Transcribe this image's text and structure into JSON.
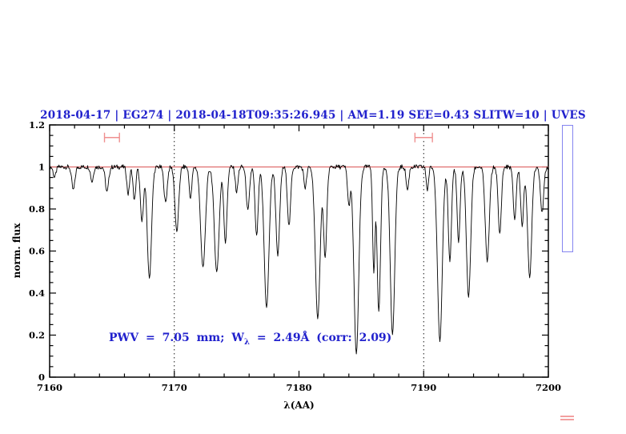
{
  "page": {
    "background": "#ffffff"
  },
  "chart_data": {
    "type": "line",
    "title": "2018-04-17 | EG274 | 2018-04-18T09:35:26.945 | AM=1.19 SEE=0.43 SLITW=10 | UVES",
    "title_color": "#2121cd",
    "xlabel": "λ(AA)",
    "ylabel": "norm. flux",
    "xlim": [
      7160,
      7200
    ],
    "ylim": [
      0,
      1.2
    ],
    "x_major_ticks": [
      7160,
      7170,
      7180,
      7190,
      7200
    ],
    "x_minor_step": 2,
    "y_major_ticks": [
      0,
      0.2,
      0.4,
      0.6,
      0.8,
      1,
      1.2
    ],
    "y_minor_step": 0.05,
    "grid": "off",
    "legend": "none",
    "guides_x_dotted": [
      7170,
      7190
    ],
    "series": [
      {
        "name": "normalized telluric spectrum",
        "color": "#000000",
        "render": "absorption-model",
        "continuum": 1.0,
        "noise_sigma": 0.011,
        "sample_step_aa": 0.05,
        "absorption_lines": [
          [
            7160.4,
            0.95,
            0.25
          ],
          [
            7161.9,
            0.89,
            0.3
          ],
          [
            7163.4,
            0.93,
            0.25
          ],
          [
            7164.6,
            0.88,
            0.3
          ],
          [
            7166.3,
            0.87,
            0.25
          ],
          [
            7166.8,
            0.84,
            0.25
          ],
          [
            7167.4,
            0.74,
            0.3
          ],
          [
            7168.0,
            0.47,
            0.4
          ],
          [
            7169.3,
            0.83,
            0.3
          ],
          [
            7170.2,
            0.69,
            0.35
          ],
          [
            7171.3,
            0.85,
            0.25
          ],
          [
            7172.3,
            0.52,
            0.45
          ],
          [
            7173.4,
            0.5,
            0.45
          ],
          [
            7174.1,
            0.64,
            0.3
          ],
          [
            7175.0,
            0.88,
            0.25
          ],
          [
            7175.9,
            0.79,
            0.3
          ],
          [
            7176.6,
            0.67,
            0.3
          ],
          [
            7177.4,
            0.33,
            0.45
          ],
          [
            7178.3,
            0.58,
            0.35
          ],
          [
            7179.2,
            0.72,
            0.3
          ],
          [
            7180.5,
            0.9,
            0.25
          ],
          [
            7181.5,
            0.28,
            0.45
          ],
          [
            7182.1,
            0.57,
            0.3
          ],
          [
            7184.0,
            0.82,
            0.25
          ],
          [
            7184.6,
            0.11,
            0.45
          ],
          [
            7186.0,
            0.5,
            0.22
          ],
          [
            7186.4,
            0.31,
            0.32
          ],
          [
            7187.5,
            0.2,
            0.42
          ],
          [
            7188.7,
            0.89,
            0.25
          ],
          [
            7190.3,
            0.89,
            0.22
          ],
          [
            7191.3,
            0.17,
            0.45
          ],
          [
            7192.1,
            0.55,
            0.3
          ],
          [
            7192.8,
            0.64,
            0.28
          ],
          [
            7193.6,
            0.38,
            0.4
          ],
          [
            7195.1,
            0.55,
            0.38
          ],
          [
            7196.1,
            0.68,
            0.3
          ],
          [
            7197.3,
            0.75,
            0.28
          ],
          [
            7197.9,
            0.72,
            0.28
          ],
          [
            7198.5,
            0.47,
            0.38
          ],
          [
            7199.5,
            0.78,
            0.3
          ]
        ]
      },
      {
        "name": "continuum fit",
        "color": "#e06c6c",
        "y": 1.0
      }
    ],
    "range_markers": {
      "color": "#ef8f8f",
      "y_flux": 1.14,
      "items": [
        [
          7164.4,
          7165.6
        ],
        [
          7189.3,
          7190.7
        ]
      ]
    },
    "annotation": {
      "part1": "PWV = 7.05 mm; W",
      "sub": "λ",
      "part2": " = 2.49Å (corr: 2.09)",
      "color": "#2121cd"
    }
  },
  "decorations": {
    "right_rectangle": {
      "color": "#8585f0"
    },
    "corner_equals_icon": {
      "color": "#f2a0a0"
    }
  }
}
